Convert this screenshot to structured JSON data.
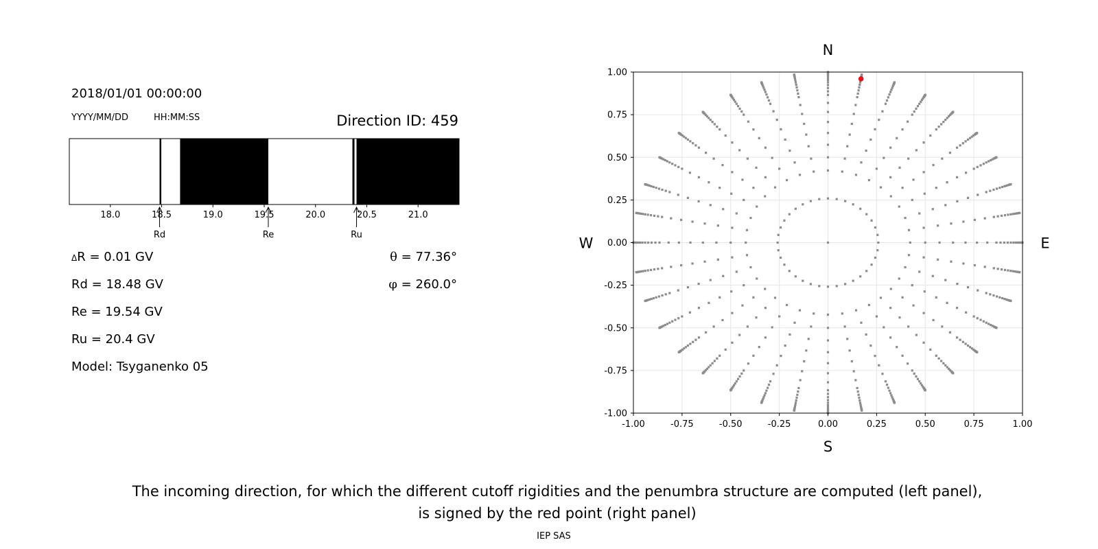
{
  "header": {
    "datetime": "2018/01/01 00:00:00",
    "date_format": "YYYY/MM/DD",
    "time_format": "HH:MM:SS",
    "direction_label": "Direction ID: 459"
  },
  "cutoffs": {
    "delta_symbol": "Δ",
    "delta_r": "R = 0.01 GV",
    "rd": "Rd = 18.48 GV",
    "re": "Re = 19.54 GV",
    "ru": "Ru = 20.4 GV",
    "model": "Model: Tsyganenko 05",
    "theta_symbol": "θ",
    "theta": " = 77.36°",
    "phi_symbol": "φ",
    "phi": " = 260.0°"
  },
  "colors": {
    "allowed": "#ffffff",
    "forbidden": "#000000",
    "grid_points": "#8c8c8c",
    "selected_point": "#e8131a"
  },
  "chart_data": [
    {
      "type": "penumbra-bar",
      "xlim": [
        17.6,
        21.4
      ],
      "ticks": [
        18.0,
        18.5,
        19.0,
        19.5,
        20.0,
        20.5,
        21.0
      ],
      "tick_labels": [
        "18.0",
        "18.5",
        "19.0",
        "19.5",
        "20.0",
        "20.5",
        "21.0"
      ],
      "forbidden_intervals": [
        [
          18.48,
          18.49
        ],
        [
          18.68,
          19.54
        ],
        [
          20.36,
          20.38
        ],
        [
          20.4,
          21.4
        ]
      ],
      "markers": [
        {
          "label": "Rd",
          "value": 18.48
        },
        {
          "label": "Re",
          "value": 19.54
        },
        {
          "label": "Ru",
          "value": 20.4
        }
      ]
    },
    {
      "type": "scatter",
      "xlim": [
        -1.0,
        1.0
      ],
      "ylim": [
        -1.0,
        1.0
      ],
      "xticks": [
        "-1.00",
        "-0.75",
        "-0.50",
        "-0.25",
        "0.00",
        "0.25",
        "0.50",
        "0.75",
        "1.00"
      ],
      "yticks": [
        "-1.00",
        "-0.75",
        "-0.50",
        "-0.25",
        "0.00",
        "0.25",
        "0.50",
        "0.75",
        "1.00"
      ],
      "tick_values": [
        -1.0,
        -0.75,
        -0.5,
        -0.25,
        0.0,
        0.25,
        0.5,
        0.75,
        1.0
      ],
      "grid": true,
      "compass": {
        "n": "N",
        "s": "S",
        "w": "W",
        "e": "E"
      },
      "rings_theta_deg": [
        0,
        15,
        25,
        30,
        35,
        40,
        45,
        50,
        55,
        60,
        62.5,
        65,
        67.5,
        70,
        72.5,
        75,
        77.5,
        80,
        82,
        84,
        86,
        88,
        90
      ],
      "azimuth_step_deg": 10,
      "selected_point": {
        "x": 0.17,
        "y": 0.96
      }
    }
  ],
  "caption": {
    "line1": "The incoming direction, for which the different cutoff rigidities and the penumbra structure are computed (left panel),",
    "line2": "is signed by the red point (right panel)"
  },
  "credit": "IEP SAS"
}
